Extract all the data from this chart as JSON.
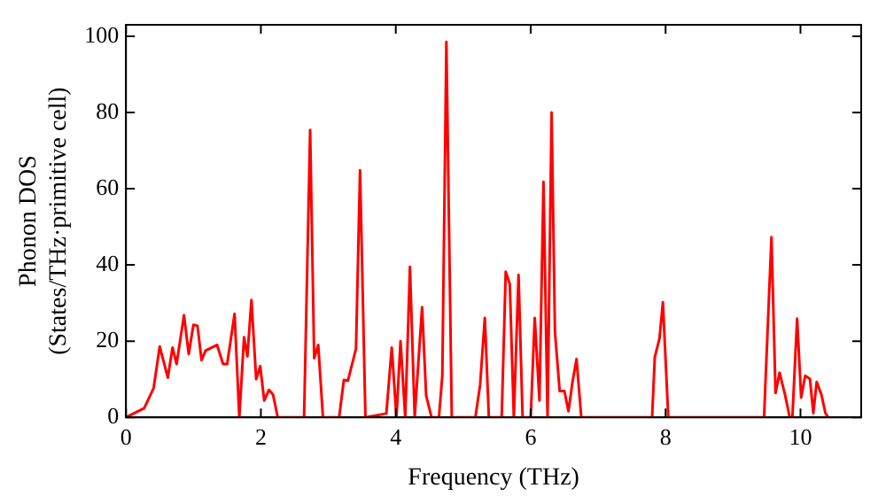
{
  "chart_data": {
    "type": "line",
    "xlabel": "Frequency (THz)",
    "ylabel": "Phonon DOS\n(States/THz·primitive cell)",
    "x": [
      0,
      0.27,
      0.41,
      0.5,
      0.62,
      0.69,
      0.75,
      0.86,
      0.93,
      1.0,
      1.06,
      1.12,
      1.18,
      1.35,
      1.44,
      1.5,
      1.61,
      1.68,
      1.75,
      1.8,
      1.86,
      1.93,
      1.99,
      2.05,
      2.12,
      2.18,
      2.25,
      2.64,
      2.73,
      2.79,
      2.85,
      2.92,
      3.16,
      3.23,
      3.29,
      3.41,
      3.47,
      3.55,
      3.86,
      3.94,
      4.01,
      4.07,
      4.14,
      4.21,
      4.28,
      4.39,
      4.45,
      4.53,
      4.64,
      4.69,
      4.75,
      4.83,
      5.18,
      5.25,
      5.32,
      5.38,
      5.57,
      5.63,
      5.69,
      5.75,
      5.82,
      5.88,
      6.0,
      6.06,
      6.13,
      6.19,
      6.25,
      6.31,
      6.36,
      6.43,
      6.5,
      6.56,
      6.62,
      6.68,
      6.75,
      7.8,
      7.84,
      7.91,
      7.96,
      8.04,
      9.46,
      9.5,
      9.57,
      9.63,
      9.69,
      9.77,
      9.84,
      9.88,
      9.95,
      10.01,
      10.07,
      10.14,
      10.19,
      10.24,
      10.31,
      10.37,
      10.41
    ],
    "series": [
      {
        "color": "#ff0000",
        "values": [
          0,
          2.4,
          7.7,
          18.6,
          10.4,
          18.3,
          14,
          26.8,
          16.6,
          24.3,
          24,
          15,
          17.5,
          19,
          14,
          14,
          27.2,
          0,
          21,
          16,
          30.8,
          10,
          13.4,
          4.4,
          7.2,
          6,
          0,
          0,
          75.4,
          15.5,
          19,
          0,
          0,
          9.8,
          9.6,
          18,
          64.8,
          0,
          1,
          18.3,
          0,
          20,
          0,
          39.5,
          0,
          28.9,
          5.7,
          0,
          0,
          11,
          98.5,
          0,
          0,
          8.5,
          26.1,
          0,
          0,
          38.2,
          35,
          0,
          37.4,
          0,
          0,
          26.1,
          4.4,
          61.8,
          0,
          80,
          22.3,
          6.9,
          6.9,
          1.6,
          9.3,
          15.3,
          0,
          0,
          15.8,
          20.7,
          30.2,
          0,
          0,
          17.5,
          47.3,
          6.4,
          11.7,
          6,
          0,
          0,
          25.9,
          5.2,
          10.9,
          10.1,
          1.1,
          9.3,
          6,
          1.1,
          0
        ]
      }
    ],
    "xlim": [
      0,
      10.9
    ],
    "xticks": [
      0,
      2,
      4,
      6,
      8,
      10
    ],
    "ylim": [
      0,
      103
    ],
    "yticks": [
      0,
      20,
      40,
      60,
      80,
      100
    ],
    "grid": false,
    "legend": false,
    "marker": "none",
    "line_style": "solid"
  }
}
